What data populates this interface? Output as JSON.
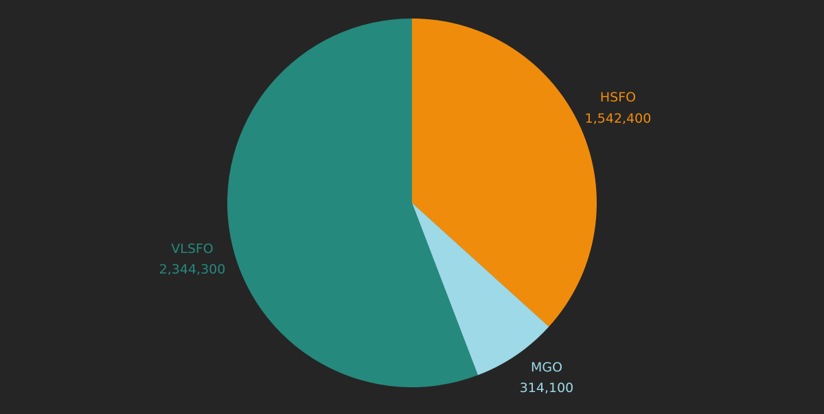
{
  "chart_data": {
    "type": "pie",
    "start_angle_deg": 0,
    "direction": "clockwise",
    "series": [
      {
        "values": [
          1542400,
          314100,
          2344300
        ]
      }
    ],
    "slices": [
      {
        "label": "HSFO",
        "value": 1542400,
        "value_label": "1,542,400",
        "color": "#f08c0c"
      },
      {
        "label": "MGO",
        "value": 314100,
        "value_label": "314,100",
        "color": "#9dd9e6"
      },
      {
        "label": "VLSFO",
        "value": 2344300,
        "value_label": "2,344,300",
        "color": "#26897d"
      }
    ],
    "background_color": "#252525"
  }
}
